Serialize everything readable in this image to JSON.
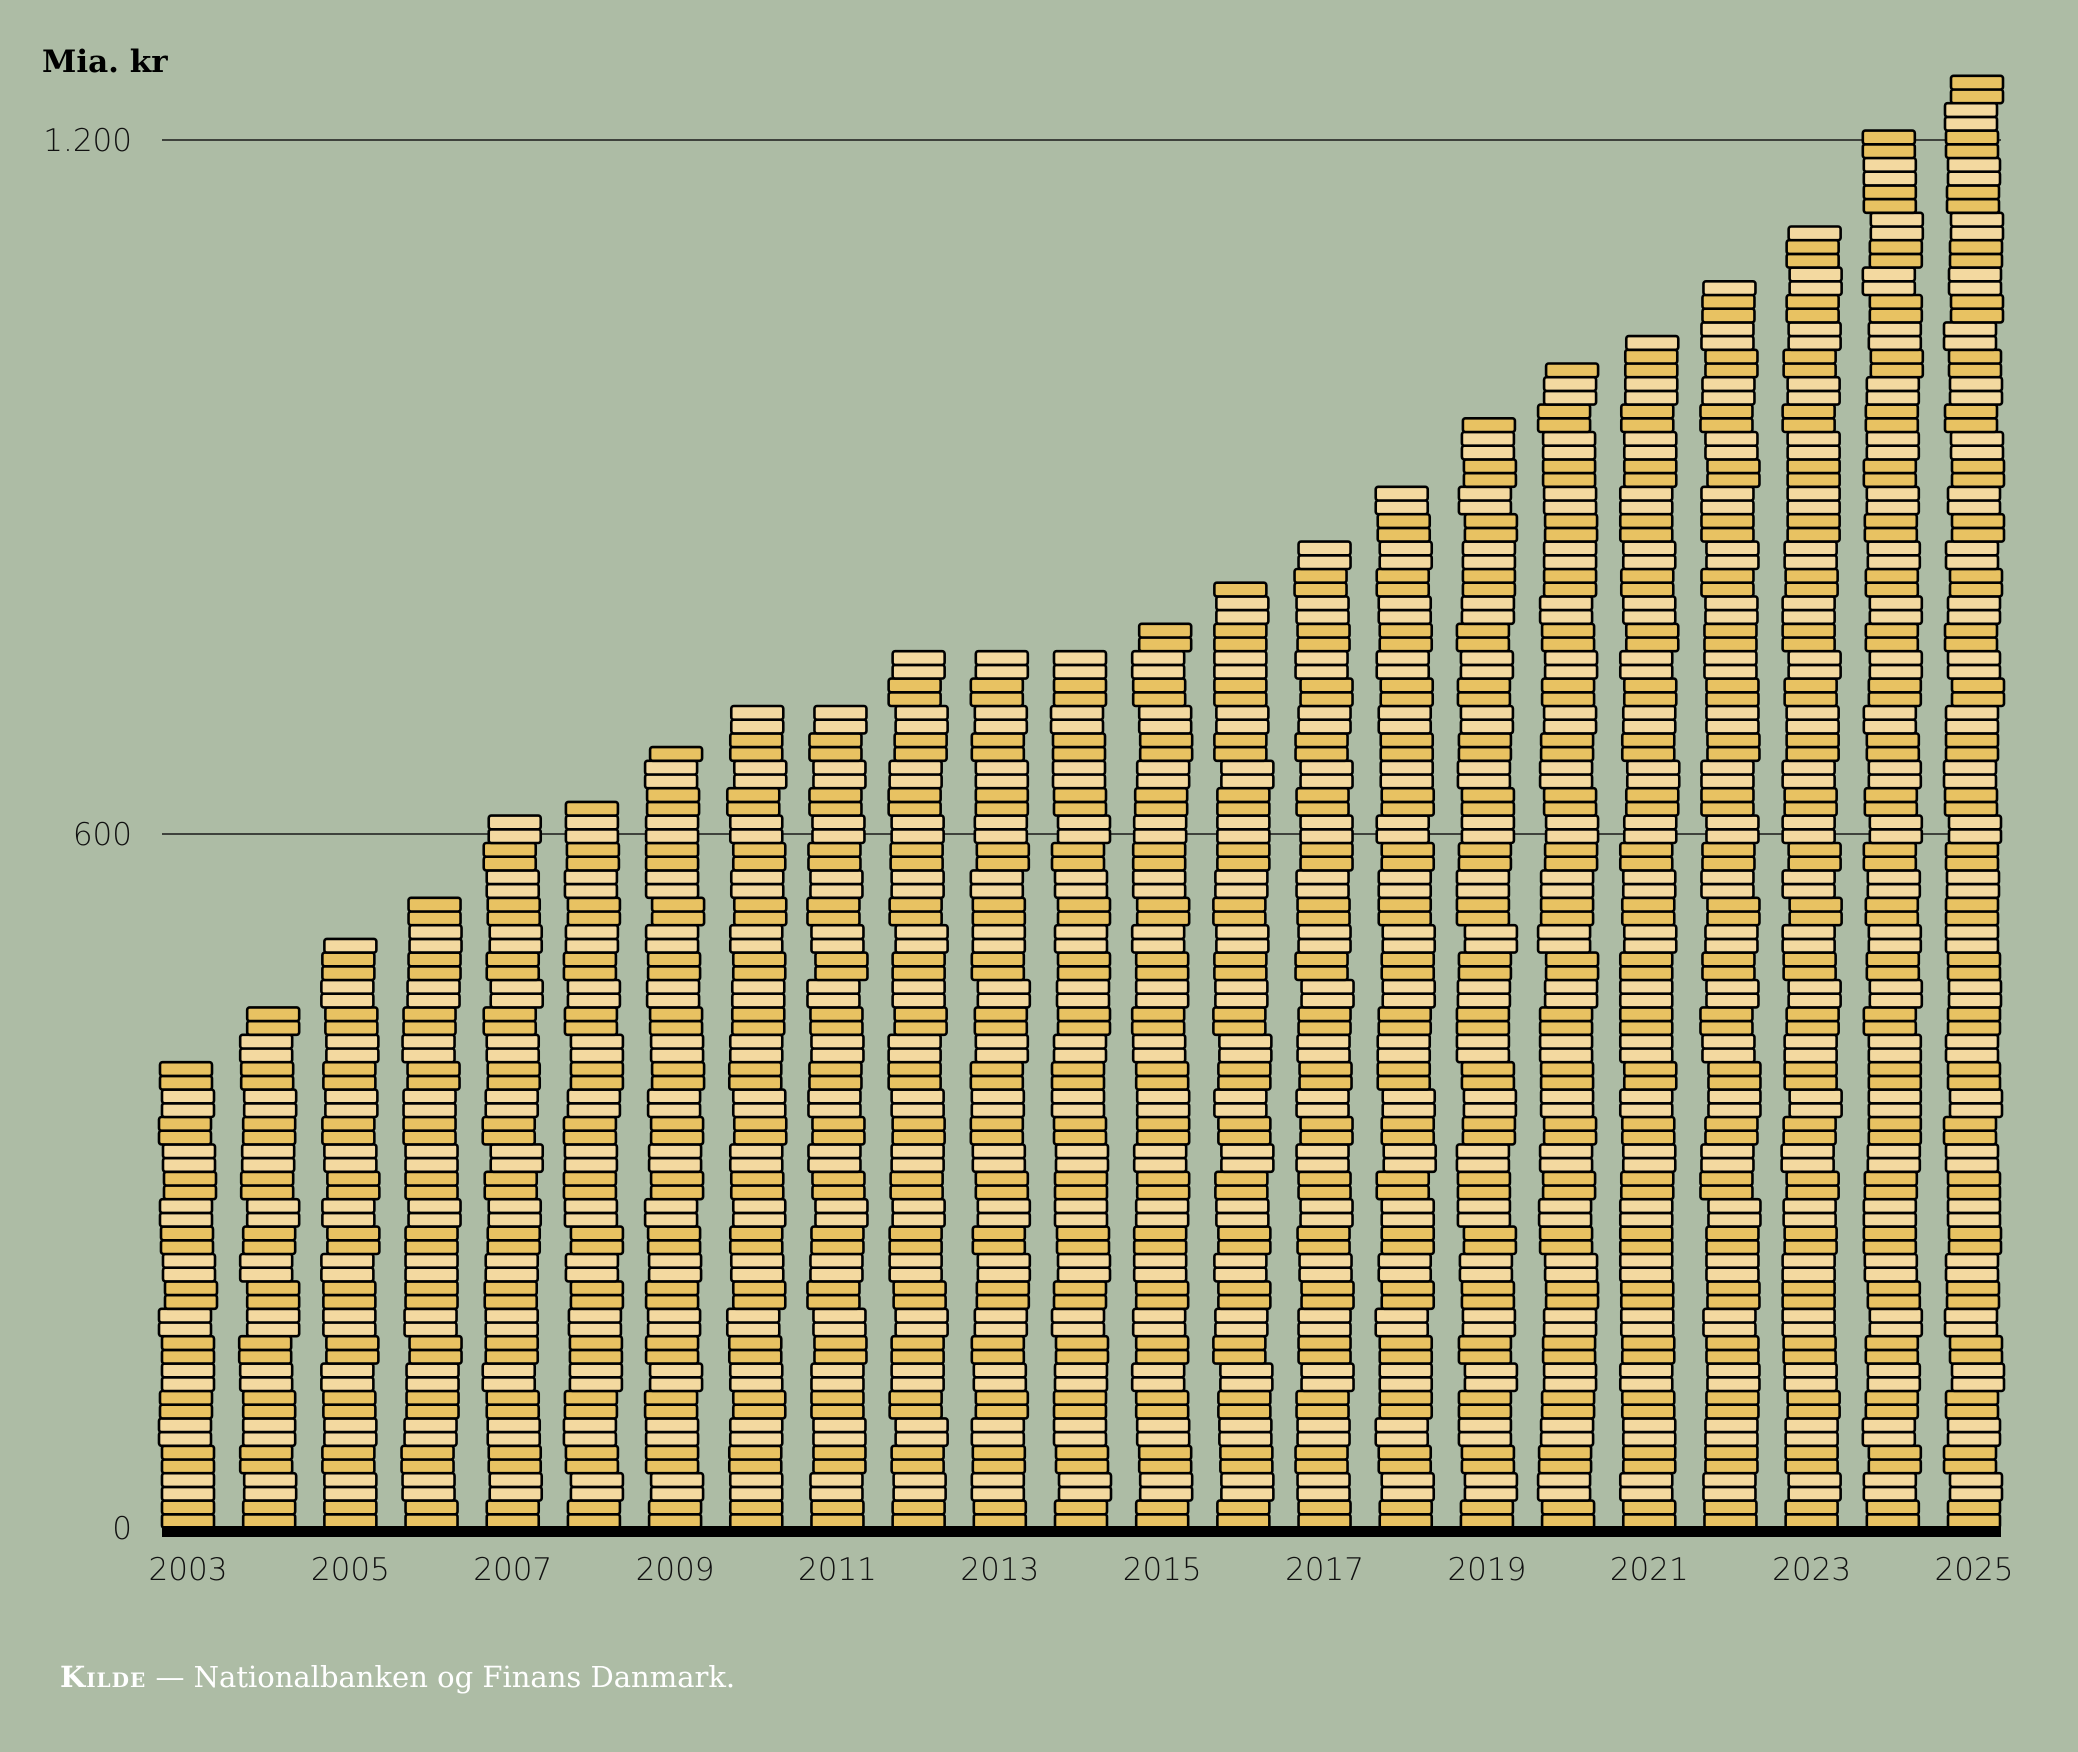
{
  "chart_data": {
    "type": "bar",
    "title": "",
    "ylabel": "Mia. kr",
    "xlabel": "",
    "ylim": [
      0,
      1260
    ],
    "yticks": [
      0,
      600,
      1200
    ],
    "ytick_labels": [
      "0",
      "600",
      "1.200"
    ],
    "categories": [
      "2003",
      "2004",
      "2005",
      "2006",
      "2007",
      "2008",
      "2009",
      "2010",
      "2011",
      "2012",
      "2013",
      "2014",
      "2015",
      "2016",
      "2017",
      "2018",
      "2019",
      "2020",
      "2021",
      "2022",
      "2023",
      "2024",
      "2025"
    ],
    "xtick_labels": [
      "2003",
      "2005",
      "2007",
      "2009",
      "2011",
      "2013",
      "2015",
      "2017",
      "2019",
      "2021",
      "2023",
      "2025"
    ],
    "values": [
      407,
      450,
      514,
      549,
      620,
      627,
      675,
      705,
      714,
      761,
      758,
      761,
      782,
      818,
      850,
      896,
      961,
      1011,
      1032,
      1077,
      1125,
      1203,
      1258
    ],
    "grid": true,
    "legend": "none"
  },
  "colors": {
    "background": "#adbca5",
    "coin_dark": "#e8c262",
    "coin_light": "#f3d9a0",
    "outline": "#000000"
  },
  "source": {
    "label": "Kilde",
    "text": "— Nationalbanken og Finans Danmark."
  }
}
